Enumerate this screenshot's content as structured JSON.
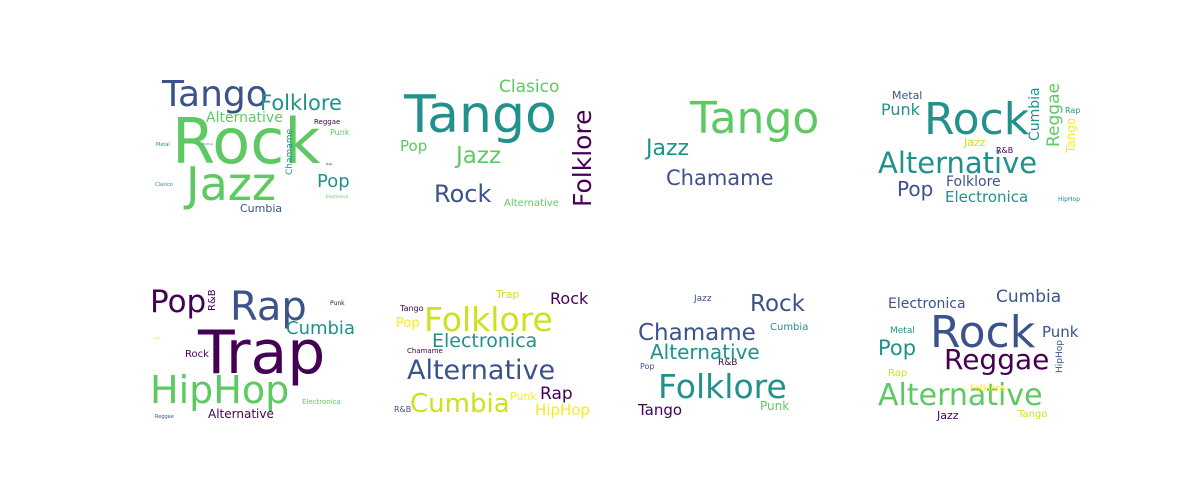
{
  "colors": {
    "purple": "#440154",
    "indigo": "#3b528b",
    "teal": "#21918c",
    "green": "#5ec962",
    "yellow": "#cde11d"
  },
  "clouds": [
    {
      "words": [
        "Tango",
        "Folklore",
        "Alternative",
        "Rock",
        "Reggae",
        "Punk",
        "Metal",
        "HipHop",
        "Chamame",
        "Pop",
        "Jazz",
        "Clasico",
        "Cumbia",
        "Electronica",
        "Trap"
      ]
    },
    {
      "words": [
        "Clasico",
        "Tango",
        "Folklore",
        "Pop",
        "Jazz",
        "Rock",
        "Alternative"
      ]
    },
    {
      "words": [
        "Tango",
        "Jazz",
        "Chamame"
      ]
    },
    {
      "words": [
        "Metal",
        "Punk",
        "Rock",
        "Cumbia",
        "Reggae",
        "Rap",
        "Tango",
        "Jazz",
        "R&B",
        "Alternative",
        "Pop",
        "Folklore",
        "Electronica",
        "HipHop"
      ]
    },
    {
      "words": [
        "Pop",
        "R&B",
        "Rap",
        "Punk",
        "Cumbia",
        "Jazz",
        "Trap",
        "Rock",
        "HipHop",
        "Electronica",
        "Alternative",
        "Reggae"
      ]
    },
    {
      "words": [
        "Trap",
        "Rock",
        "Tango",
        "Folklore",
        "Pop",
        "Electronica",
        "Chamame",
        "Alternative",
        "Rap",
        "Cumbia",
        "Punk",
        "HipHop",
        "R&B"
      ]
    },
    {
      "words": [
        "Jazz",
        "Rock",
        "Cumbia",
        "Chamame",
        "R&B",
        "Alternative",
        "Pop",
        "Folklore",
        "Tango",
        "Punk"
      ]
    },
    {
      "words": [
        "Electronica",
        "Cumbia",
        "Metal",
        "Rock",
        "Punk",
        "Pop",
        "HipHop",
        "Reggae",
        "Rap",
        "Alternative",
        "Folklore",
        "Jazz",
        "Tango"
      ]
    }
  ]
}
